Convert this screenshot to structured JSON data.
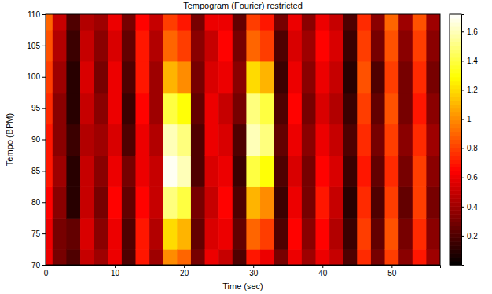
{
  "chart_data": {
    "type": "heatmap",
    "title": "Tempogram (Fourier) restricted",
    "x_label": "Time (sec)",
    "y_label": "Tempo (BPM)",
    "x": [
      0,
      2,
      4,
      6,
      8,
      10,
      12,
      14,
      16,
      18,
      20,
      22,
      24,
      26,
      28,
      30,
      32,
      34,
      36,
      38,
      40,
      42,
      44,
      46,
      48,
      50,
      52,
      54,
      56
    ],
    "y": [
      70,
      75,
      80,
      85,
      90,
      95,
      100,
      105,
      110
    ],
    "z": [
      [
        0.6,
        0.6,
        0.65,
        0.7,
        0.7,
        0.75,
        0.8,
        0.85,
        0.9
      ],
      [
        0.3,
        0.3,
        0.35,
        0.4,
        0.35,
        0.35,
        0.4,
        0.45,
        0.5
      ],
      [
        0.2,
        0.25,
        0.1,
        0.1,
        0.15,
        0.1,
        0.1,
        0.15,
        0.2
      ],
      [
        0.5,
        0.55,
        0.5,
        0.5,
        0.45,
        0.5,
        0.55,
        0.5,
        0.45
      ],
      [
        0.4,
        0.35,
        0.3,
        0.35,
        0.4,
        0.35,
        0.3,
        0.35,
        0.4
      ],
      [
        0.6,
        0.6,
        0.65,
        0.6,
        0.55,
        0.6,
        0.6,
        0.55,
        0.6
      ],
      [
        0.2,
        0.2,
        0.25,
        0.3,
        0.2,
        0.15,
        0.2,
        0.25,
        0.3
      ],
      [
        0.7,
        0.7,
        0.65,
        0.6,
        0.6,
        0.65,
        0.7,
        0.7,
        0.65
      ],
      [
        0.4,
        0.45,
        0.5,
        0.5,
        0.45,
        0.4,
        0.4,
        0.45,
        0.5
      ],
      [
        1.0,
        1.2,
        1.5,
        1.7,
        1.6,
        1.4,
        1.1,
        0.9,
        0.8
      ],
      [
        0.9,
        1.1,
        1.4,
        1.6,
        1.5,
        1.3,
        1.0,
        0.8,
        0.7
      ],
      [
        0.3,
        0.25,
        0.3,
        0.2,
        0.2,
        0.25,
        0.3,
        0.35,
        0.3
      ],
      [
        0.6,
        0.55,
        0.5,
        0.55,
        0.6,
        0.6,
        0.55,
        0.5,
        0.6
      ],
      [
        0.5,
        0.6,
        0.65,
        0.6,
        0.55,
        0.5,
        0.6,
        0.65,
        0.6
      ],
      [
        0.2,
        0.25,
        0.2,
        0.15,
        0.2,
        0.3,
        0.35,
        0.3,
        0.25
      ],
      [
        0.7,
        0.9,
        1.1,
        1.4,
        1.6,
        1.5,
        1.2,
        0.9,
        0.8
      ],
      [
        0.6,
        0.8,
        1.0,
        1.3,
        1.5,
        1.4,
        1.1,
        0.8,
        0.7
      ],
      [
        0.3,
        0.2,
        0.15,
        0.2,
        0.25,
        0.2,
        0.15,
        0.2,
        0.3
      ],
      [
        0.6,
        0.65,
        0.6,
        0.55,
        0.6,
        0.65,
        0.6,
        0.55,
        0.6
      ],
      [
        0.4,
        0.35,
        0.3,
        0.3,
        0.35,
        0.3,
        0.35,
        0.4,
        0.35
      ],
      [
        0.6,
        0.65,
        0.7,
        0.65,
        0.6,
        0.55,
        0.6,
        0.65,
        0.6
      ],
      [
        0.5,
        0.45,
        0.5,
        0.55,
        0.5,
        0.45,
        0.5,
        0.55,
        0.5
      ],
      [
        0.2,
        0.15,
        0.1,
        0.15,
        0.2,
        0.15,
        0.1,
        0.15,
        0.2
      ],
      [
        0.75,
        0.8,
        0.75,
        0.7,
        0.75,
        0.8,
        0.85,
        0.8,
        0.75
      ],
      [
        0.3,
        0.25,
        0.2,
        0.25,
        0.3,
        0.25,
        0.2,
        0.3,
        0.35
      ],
      [
        0.8,
        0.85,
        0.8,
        0.75,
        0.8,
        0.85,
        0.8,
        0.85,
        0.9
      ],
      [
        0.35,
        0.3,
        0.25,
        0.3,
        0.35,
        0.3,
        0.3,
        0.35,
        0.4
      ],
      [
        0.7,
        0.75,
        0.8,
        0.8,
        0.75,
        0.7,
        0.75,
        0.8,
        0.85
      ],
      [
        0.4,
        0.35,
        0.3,
        0.35,
        0.4,
        0.35,
        0.3,
        0.35,
        0.4
      ]
    ],
    "xlim": [
      0,
      57
    ],
    "ylim": [
      70,
      110
    ],
    "xticks": [
      0,
      10,
      20,
      30,
      40,
      50
    ],
    "yticks": [
      70,
      75,
      80,
      85,
      90,
      95,
      100,
      105,
      110
    ],
    "colorbar_range": [
      0,
      1.72
    ],
    "colorbar_ticks": [
      0.2,
      0.4,
      0.6,
      0.8,
      1,
      1.2,
      1.4,
      1.6
    ]
  }
}
